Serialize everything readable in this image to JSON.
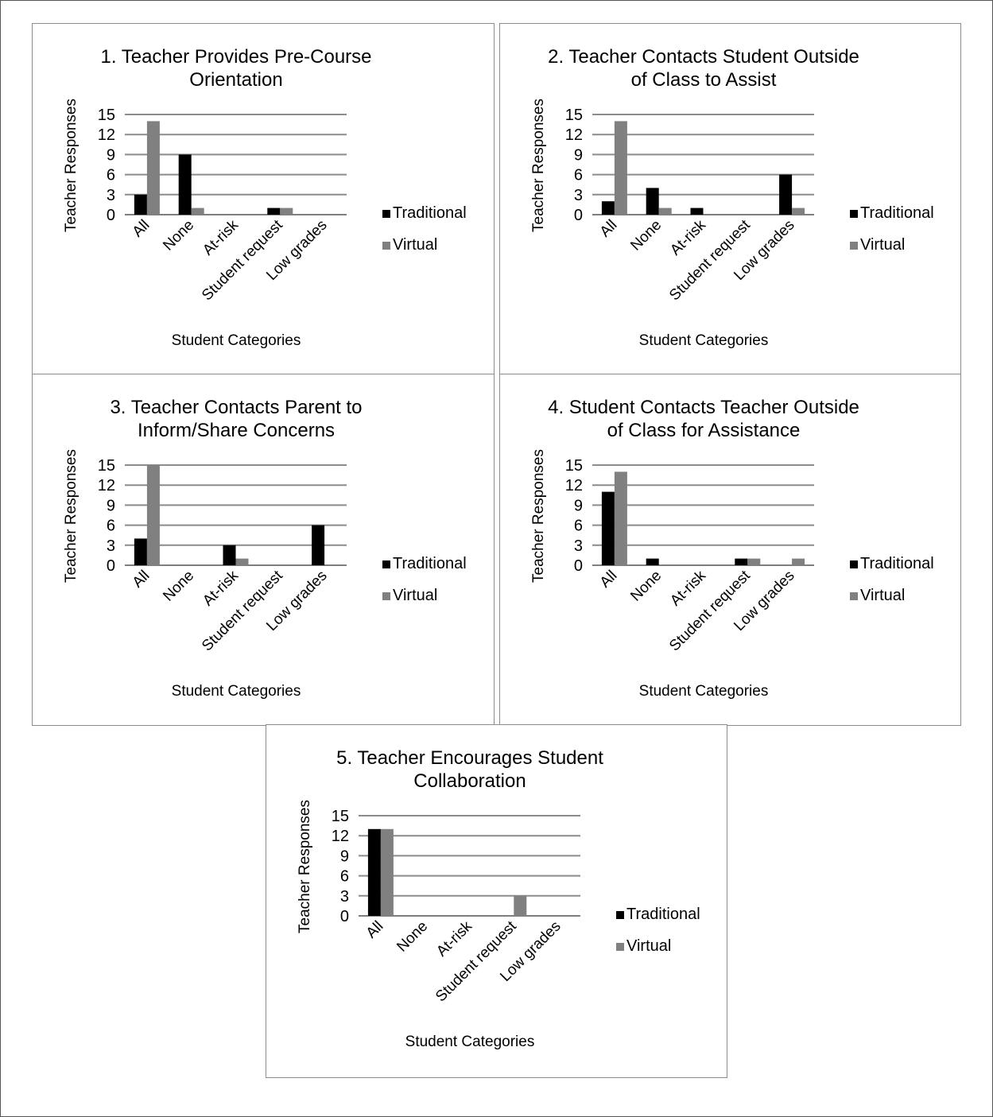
{
  "series_colors": {
    "Traditional": "#000000",
    "Virtual": "#808080"
  },
  "chart_data": [
    {
      "type": "bar",
      "title": "1. Teacher Provides Pre-Course Orientation",
      "title_lines": [
        "1. Teacher Provides Pre-Course",
        "Orientation"
      ],
      "xlabel": "Student Categories",
      "ylabel": "Teacher Responses",
      "categories": [
        "All",
        "None",
        "At-risk",
        "Student request",
        "Low grades"
      ],
      "yticks": [
        "0",
        "3",
        "6",
        "9",
        "12",
        "15"
      ],
      "ylim": [
        0,
        15
      ],
      "grid": true,
      "legend": "right",
      "series": [
        {
          "name": "Traditional",
          "values": [
            3,
            9,
            0,
            1,
            0
          ]
        },
        {
          "name": "Virtual",
          "values": [
            14,
            1,
            0,
            1,
            0
          ]
        }
      ]
    },
    {
      "type": "bar",
      "title": "2. Teacher Contacts Student Outside of Class to Assist",
      "title_lines": [
        "2. Teacher Contacts Student Outside",
        "of Class to Assist"
      ],
      "xlabel": "Student Categories",
      "ylabel": "Teacher Responses",
      "categories": [
        "All",
        "None",
        "At-risk",
        "Student request",
        "Low grades"
      ],
      "yticks": [
        "0",
        "3",
        "6",
        "9",
        "12",
        "15"
      ],
      "ylim": [
        0,
        15
      ],
      "grid": true,
      "legend": "right",
      "series": [
        {
          "name": "Traditional",
          "values": [
            2,
            4,
            1,
            0,
            6
          ]
        },
        {
          "name": "Virtual",
          "values": [
            14,
            1,
            0,
            0,
            1
          ]
        }
      ]
    },
    {
      "type": "bar",
      "title": "3. Teacher Contacts Parent to Inform/Share Concerns",
      "title_lines": [
        "3. Teacher Contacts Parent to",
        "Inform/Share Concerns"
      ],
      "xlabel": "Student Categories",
      "ylabel": "Teacher Responses",
      "categories": [
        "All",
        "None",
        "At-risk",
        "Student request",
        "Low grades"
      ],
      "yticks": [
        "0",
        "3",
        "6",
        "9",
        "12",
        "15"
      ],
      "ylim": [
        0,
        15
      ],
      "grid": true,
      "legend": "right",
      "series": [
        {
          "name": "Traditional",
          "values": [
            4,
            0,
            3,
            0,
            6
          ]
        },
        {
          "name": "Virtual",
          "values": [
            15,
            0,
            1,
            0,
            0
          ]
        }
      ]
    },
    {
      "type": "bar",
      "title": "4. Student Contacts Teacher Outside of Class for Assistance",
      "title_lines": [
        "4. Student Contacts Teacher Outside",
        "of Class for Assistance"
      ],
      "xlabel": "Student Categories",
      "ylabel": "Teacher Responses",
      "categories": [
        "All",
        "None",
        "At-risk",
        "Student request",
        "Low grades"
      ],
      "yticks": [
        "0",
        "3",
        "6",
        "9",
        "12",
        "15"
      ],
      "ylim": [
        0,
        15
      ],
      "grid": true,
      "legend": "right",
      "series": [
        {
          "name": "Traditional",
          "values": [
            11,
            1,
            0,
            1,
            0
          ]
        },
        {
          "name": "Virtual",
          "values": [
            14,
            0,
            0,
            1,
            1
          ]
        }
      ]
    },
    {
      "type": "bar",
      "title": "5. Teacher Encourages Student Collaboration",
      "title_lines": [
        "5. Teacher Encourages Student",
        "Collaboration"
      ],
      "xlabel": "Student Categories",
      "ylabel": "Teacher Responses",
      "categories": [
        "All",
        "None",
        "At-risk",
        "Student request",
        "Low grades"
      ],
      "yticks": [
        "0",
        "3",
        "6",
        "9",
        "12",
        "15"
      ],
      "ylim": [
        0,
        15
      ],
      "grid": true,
      "legend": "right",
      "series": [
        {
          "name": "Traditional",
          "values": [
            13,
            0,
            0,
            0,
            0
          ]
        },
        {
          "name": "Virtual",
          "values": [
            13,
            0,
            0,
            3,
            0
          ]
        }
      ]
    }
  ]
}
